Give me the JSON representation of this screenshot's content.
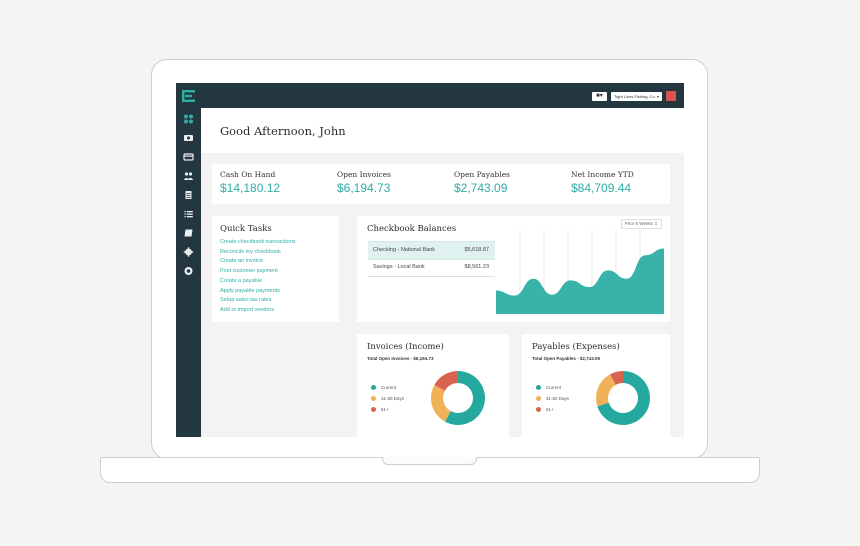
{
  "colors": {
    "accent": "#2eaea5",
    "nav": "#243740",
    "current": "#25a99f",
    "days_31_60": "#f0b158",
    "days_61_plus": "#d9634f",
    "danger": "#d9534f"
  },
  "topbar": {
    "company": "Tight Lines Fishing, Co.",
    "logo_icon": "logo-icon"
  },
  "sidebar": {
    "icons": [
      "dashboard-icon",
      "money-icon",
      "credit-card-icon",
      "people-icon",
      "document-icon",
      "list-icon",
      "checkbook-icon",
      "settings-icon",
      "help-icon"
    ]
  },
  "greeting": "Good Afternoon, John",
  "stats": [
    {
      "label": "Cash On Hand",
      "value": "$14,180.12"
    },
    {
      "label": "Open Invoices",
      "value": "$6,194.73"
    },
    {
      "label": "Open Payables",
      "value": "$2,743.09"
    },
    {
      "label": "Net Income YTD",
      "value": "$84,709.44"
    }
  ],
  "quick_tasks": {
    "title": "Quick Tasks",
    "items": [
      "Create checkbook transactions",
      "Reconcile my checkbook",
      "Create an invoice",
      "Post customer payment",
      "Create a payable",
      "Apply payable payments",
      "Setup sales tax rates",
      "Add or import vendors"
    ]
  },
  "checkbook": {
    "title": "Checkbook Balances",
    "period": "Prior 6 Weeks",
    "rows": [
      {
        "name": "Checking - National Bank",
        "amount": "$5,618.87"
      },
      {
        "name": "Savings - Local Bank",
        "amount": "$8,561.23"
      }
    ],
    "chart_data": {
      "type": "area",
      "values": [
        0.28,
        0.22,
        0.42,
        0.23,
        0.4,
        0.32,
        0.52,
        0.42,
        0.7,
        0.78
      ],
      "grid": true
    }
  },
  "invoices": {
    "title": "Invoices (Income)",
    "subtitle": "Total Open Invoices - $6,194.73",
    "legend": [
      "Current",
      "31-60 Days",
      "61+"
    ],
    "chart_data": {
      "type": "pie",
      "labels": [
        "Current",
        "31-60 Days",
        "61+"
      ],
      "values": [
        58,
        25,
        17
      ]
    }
  },
  "payables": {
    "title": "Payables (Expenses)",
    "subtitle": "Total Open Payables - $2,743.09",
    "legend": [
      "Current",
      "31-60 Days",
      "61+"
    ],
    "chart_data": {
      "type": "pie",
      "labels": [
        "Current",
        "31-60 Days",
        "61+"
      ],
      "values": [
        70,
        22,
        8
      ]
    }
  }
}
